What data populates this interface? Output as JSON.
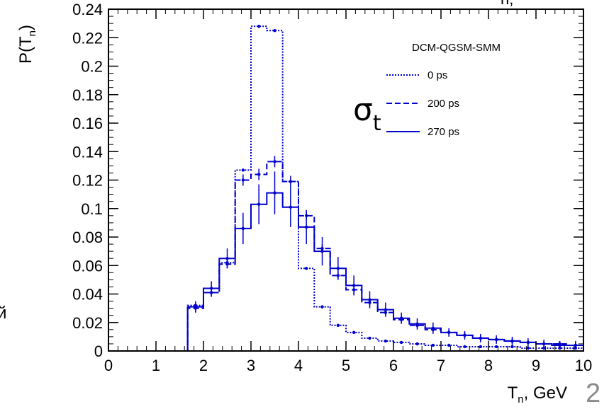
{
  "chart_data": {
    "type": "line",
    "xlabel": "T",
    "xlabel_sub": "n",
    "xlabel_unit": ", GeV",
    "ylabel_prefix": "P(T",
    "ylabel_sub": "n",
    "ylabel_suffix": ")",
    "xlim": [
      0,
      10
    ],
    "ylim": [
      0,
      0.24
    ],
    "x_ticks": [
      0,
      1,
      2,
      3,
      4,
      5,
      6,
      7,
      8,
      9,
      10
    ],
    "y_ticks": [
      "0",
      "0.02",
      "0.04",
      "0.06",
      "0.08",
      "0.1",
      "0.12",
      "0.14",
      "0.16",
      "0.18",
      "0.2",
      "0.22",
      "0.24"
    ],
    "grid": false,
    "legend_position": "top-right",
    "legend_title": "DCM-QGSM-SMM",
    "sigma_label": "σ",
    "sigma_sub": "t",
    "bin_edges": [
      0,
      0.333,
      0.667,
      1.0,
      1.333,
      1.667,
      2.0,
      2.333,
      2.667,
      3.0,
      3.333,
      3.667,
      4.0,
      4.333,
      4.667,
      5.0,
      5.333,
      5.667,
      6.0,
      6.333,
      6.667,
      7.0,
      7.333,
      7.667,
      8.0,
      8.333,
      8.667,
      9.0,
      9.333,
      9.667,
      10.0
    ],
    "series": [
      {
        "name": "0 ps",
        "color": "#0000cc",
        "style": "dotted",
        "values": [
          0,
          0,
          0,
          0,
          0,
          0.032,
          0.041,
          0.062,
          0.127,
          0.228,
          0.225,
          0.119,
          0.058,
          0.031,
          0.018,
          0.013,
          0.009,
          0.007,
          0.006,
          0.005,
          0.004,
          0.004,
          0.003,
          0.003,
          0.003,
          0.003,
          0.002,
          0.002,
          0.002,
          0.002
        ],
        "errors": [
          0,
          0,
          0,
          0,
          0,
          0.001,
          0.001,
          0.001,
          0.001,
          0.001,
          0.001,
          0.001,
          0.001,
          0.001,
          0.001,
          0.001,
          0.001,
          0.0005,
          0.0005,
          0.0005,
          0.0005,
          0.0005,
          0.0005,
          0.0005,
          0.0005,
          0.0005,
          0.0005,
          0.0005,
          0.0005,
          0.0005
        ]
      },
      {
        "name": "200 ps",
        "color": "#0000cc",
        "style": "dashed",
        "values": [
          0,
          0,
          0,
          0,
          0,
          0.03,
          0.041,
          0.061,
          0.12,
          0.124,
          0.133,
          0.119,
          0.095,
          0.072,
          0.053,
          0.043,
          0.034,
          0.027,
          0.022,
          0.018,
          0.015,
          0.013,
          0.011,
          0.009,
          0.008,
          0.007,
          0.006,
          0.005,
          0.005,
          0.004
        ],
        "errors": [
          0,
          0,
          0,
          0,
          0,
          0.003,
          0.003,
          0.003,
          0.004,
          0.004,
          0.004,
          0.004,
          0.003,
          0.003,
          0.003,
          0.003,
          0.002,
          0.002,
          0.002,
          0.002,
          0.002,
          0.002,
          0.002,
          0.002,
          0.002,
          0.002,
          0.002,
          0.002,
          0.002,
          0.002
        ]
      },
      {
        "name": "270 ps",
        "color": "#0000cc",
        "style": "solid",
        "values": [
          0,
          0,
          0,
          0,
          0,
          0.031,
          0.044,
          0.065,
          0.086,
          0.103,
          0.111,
          0.101,
          0.087,
          0.07,
          0.058,
          0.046,
          0.036,
          0.029,
          0.023,
          0.019,
          0.016,
          0.013,
          0.011,
          0.009,
          0.008,
          0.007,
          0.006,
          0.005,
          0.004,
          0.004
        ],
        "errors": [
          0,
          0,
          0,
          0,
          0,
          0.004,
          0.005,
          0.007,
          0.011,
          0.014,
          0.015,
          0.014,
          0.012,
          0.01,
          0.008,
          0.007,
          0.006,
          0.005,
          0.004,
          0.004,
          0.004,
          0.003,
          0.003,
          0.003,
          0.003,
          0.003,
          0.003,
          0.003,
          0.003,
          0.003
        ]
      }
    ]
  },
  "fragments": {
    "top_right_sub": "n,",
    "left_edge_glyph": "й"
  },
  "slide_number": "2"
}
